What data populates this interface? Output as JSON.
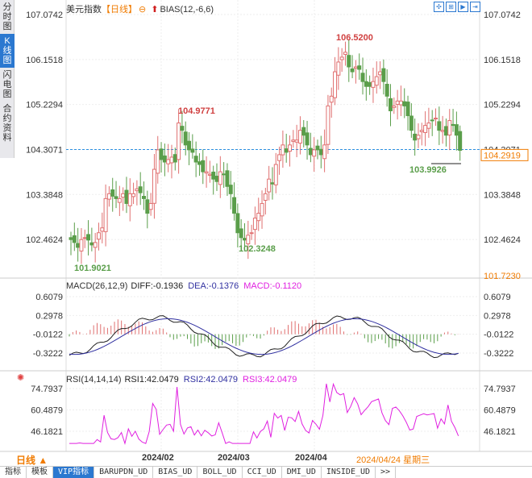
{
  "left_nav": {
    "items": [
      {
        "label": "分时图",
        "active": false
      },
      {
        "label": "K线图",
        "active": true
      },
      {
        "label": "闪电图",
        "active": false
      },
      {
        "label": "合约资料",
        "active": false
      }
    ]
  },
  "main_legend": {
    "instrument": "美元指数",
    "period": "【日线】",
    "indicator": "BIAS(12,-6,6)"
  },
  "toolbar_icons": [
    "crosshair-icon",
    "zoom-in-icon",
    "play-icon",
    "goto-end-icon"
  ],
  "current_price": "104.2919",
  "bottom_left_price": "101.7230",
  "macd_legend": {
    "name": "MACD(26,12,9)",
    "diff": "DIFF:-0.1936",
    "dea": "DEA:-0.1376",
    "macd": "MACD:-0.1120"
  },
  "rsi_legend": {
    "name": "RSI(14,14,14)",
    "rsi1": "RSI1:42.0479",
    "rsi2": "RSI2:42.0479",
    "rsi3": "RSI3:42.0479"
  },
  "period_button": "日线 ▲",
  "x_dates": [
    "2024/02",
    "2024/03",
    "2024/04"
  ],
  "cursor_date": "2024/04/24 星期三",
  "tabs": [
    "指标",
    "模板",
    "VIP指标",
    "BARUPDN_UD",
    "BIAS_UD",
    "BOLL_UD",
    "CCI_UD",
    "DMI_UD",
    "INSIDE_UD",
    ">>"
  ],
  "colors": {
    "up": "#e07070",
    "down": "#5a9e4a",
    "dash": "#2b8fe0",
    "accent": "#f07b00",
    "diff": "#222222",
    "dea": "#3030a0",
    "macd": "#e020e0"
  },
  "chart_data": [
    {
      "type": "candlestick",
      "title": "美元指数 【日线】",
      "y_ticks": [
        107.0742,
        106.1518,
        105.2294,
        104.3071,
        103.3848,
        102.4624
      ],
      "ylim": [
        101.72,
        107.07
      ],
      "annotations": [
        {
          "label": "101.9021",
          "type": "low"
        },
        {
          "label": "104.9771",
          "type": "high"
        },
        {
          "label": "102.3248",
          "type": "low"
        },
        {
          "label": "106.5200",
          "type": "high"
        },
        {
          "label": "103.9926",
          "type": "low"
        }
      ],
      "reference_line": 104.3071,
      "last_price": 104.2919,
      "close_series": [
        102.46,
        102.4,
        102.3,
        102.46,
        102.5,
        102.45,
        102.35,
        102.4,
        102.6,
        102.7,
        103.3,
        103.4,
        103.35,
        103.3,
        103.3,
        103.4,
        103.2,
        103.4,
        103.4,
        103.5,
        103.42,
        103.3,
        103.0,
        103.2,
        103.9,
        104.3,
        104.1,
        104.05,
        104.1,
        104.15,
        104.05,
        104.85,
        104.7,
        104.4,
        104.3,
        104.25,
        104.05,
        104.0,
        103.85,
        103.85,
        103.8,
        103.7,
        103.65,
        103.85,
        103.8,
        103.55,
        103.4,
        103.0,
        102.6,
        102.5,
        102.45,
        102.55,
        102.6,
        102.9,
        103.0,
        103.2,
        103.4,
        103.7,
        103.6,
        104.0,
        104.2,
        104.4,
        104.25,
        104.4,
        104.5,
        104.5,
        104.7,
        104.6,
        104.4,
        104.2,
        104.3,
        104.3,
        104.2,
        104.4,
        105.2,
        105.4,
        105.9,
        106.1,
        106.2,
        106.3,
        106.0,
        105.9,
        106.0,
        105.95,
        105.7,
        105.6,
        105.6,
        105.7,
        105.8,
        105.9,
        105.7,
        105.4,
        105.1,
        105.2,
        105.3,
        105.3,
        105.2,
        105.0,
        104.7,
        104.5,
        104.6,
        104.7,
        104.8,
        104.85,
        104.9,
        104.95,
        104.7,
        104.7,
        104.6,
        104.9,
        104.8,
        104.6,
        104.29
      ]
    },
    {
      "type": "bar+line",
      "title": "MACD(26,12,9)",
      "y_ticks": [
        0.6079,
        0.2978,
        -0.0122,
        -0.3222
      ],
      "series": [
        {
          "name": "DIFF",
          "last": -0.1936
        },
        {
          "name": "DEA",
          "last": -0.1376
        },
        {
          "name": "MACD",
          "last": -0.112
        }
      ]
    },
    {
      "type": "line",
      "title": "RSI(14,14,14)",
      "y_ticks": [
        74.7937,
        60.4879,
        46.1821
      ],
      "series": [
        {
          "name": "RSI1",
          "last": 42.0479
        },
        {
          "name": "RSI2",
          "last": 42.0479
        },
        {
          "name": "RSI3",
          "last": 42.0479
        }
      ]
    }
  ]
}
